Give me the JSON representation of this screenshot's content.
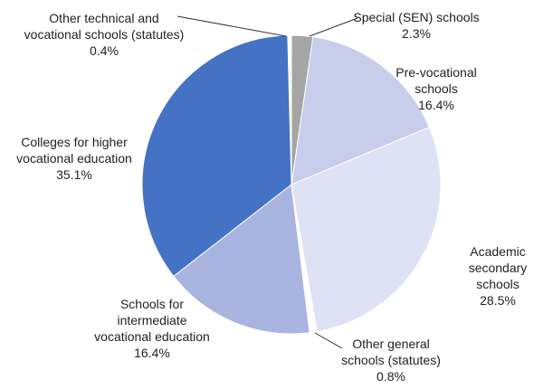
{
  "chart_data": {
    "type": "pie",
    "categories": [
      "Special (SEN) schools",
      "Pre-vocational\nschools",
      "Academic secondary\nschools",
      "Other general\nschools (statutes)",
      "Schools for\nintermediate\nvocational education",
      "Colleges for higher\nvocational education",
      "Other technical and\nvocational schools (statutes)"
    ],
    "values": [
      2.3,
      16.4,
      28.5,
      0.8,
      16.4,
      35.1,
      0.4
    ],
    "value_labels": [
      "2.3%",
      "16.4%",
      "28.5%",
      "0.8%",
      "16.4%",
      "35.1%",
      "0.4%"
    ],
    "colors": [
      "#a5a5a5",
      "#c7cdea",
      "#dfe2f4",
      "#ffffff",
      "#a9b4e0",
      "#4472c4",
      "#ffffff"
    ]
  }
}
